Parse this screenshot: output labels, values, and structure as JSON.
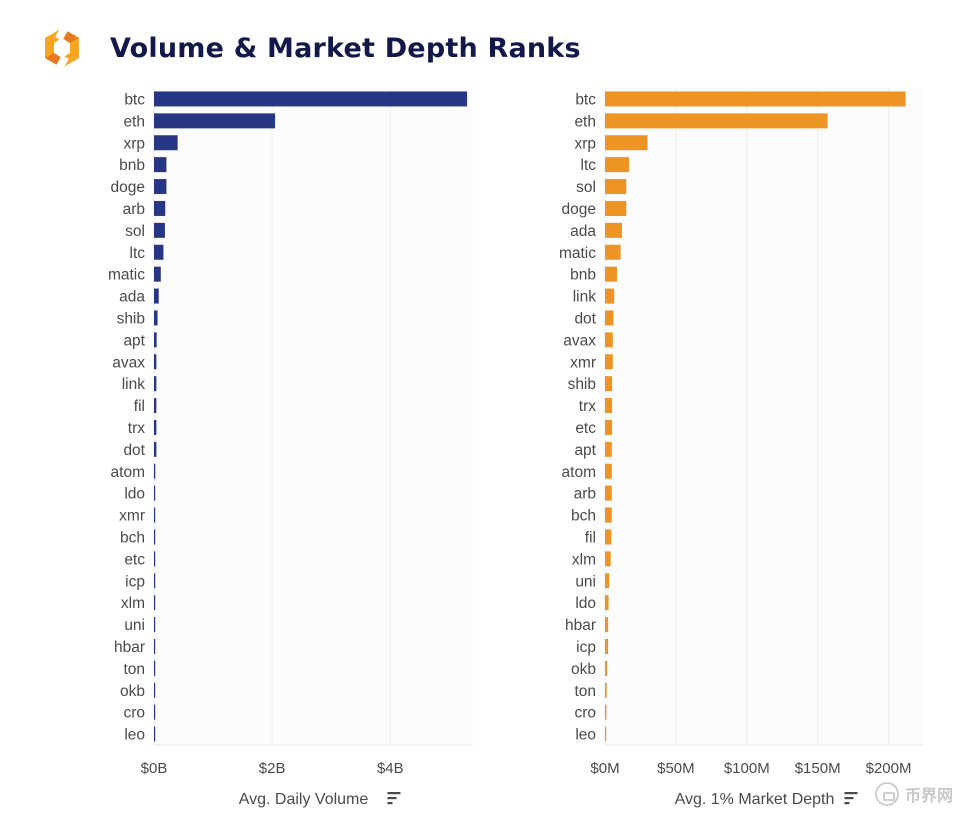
{
  "header": {
    "title": "Volume & Market Depth Ranks",
    "logo_icon": "orange-hexagon-logo-icon"
  },
  "watermark": {
    "text": "币界网",
    "icon": "coin-circle-icon"
  },
  "colors": {
    "volume": "#283785",
    "depth": "#ee9424",
    "grid": "#eeeeee",
    "text": "#4a4a4a"
  },
  "chart_data": [
    {
      "type": "bar",
      "orientation": "horizontal",
      "xlabel": "Avg. Daily Volume",
      "xlim": [
        0,
        5400000000
      ],
      "ticks": [
        0,
        2000000000,
        4000000000
      ],
      "tick_labels": [
        "$0B",
        "$2B",
        "$4B"
      ],
      "grid": true,
      "categories": [
        "btc",
        "eth",
        "xrp",
        "bnb",
        "doge",
        "arb",
        "sol",
        "ltc",
        "matic",
        "ada",
        "shib",
        "apt",
        "avax",
        "link",
        "fil",
        "trx",
        "dot",
        "atom",
        "ldo",
        "xmr",
        "bch",
        "etc",
        "icp",
        "xlm",
        "uni",
        "hbar",
        "ton",
        "okb",
        "cro",
        "leo"
      ],
      "values": [
        5300000000,
        2050000000,
        400000000,
        210000000,
        210000000,
        190000000,
        185000000,
        160000000,
        115000000,
        80000000,
        60000000,
        45000000,
        40000000,
        40000000,
        40000000,
        40000000,
        40000000,
        22000000,
        20000000,
        20000000,
        18000000,
        18000000,
        16000000,
        15000000,
        14000000,
        14000000,
        13000000,
        12000000,
        12000000,
        10000000
      ]
    },
    {
      "type": "bar",
      "orientation": "horizontal",
      "xlabel": "Avg. 1% Market Depth",
      "xlim": [
        0,
        225000000
      ],
      "ticks": [
        0,
        50000000,
        100000000,
        150000000,
        200000000
      ],
      "tick_labels": [
        "$0M",
        "$50M",
        "$100M",
        "$150M",
        "$200M"
      ],
      "grid": true,
      "categories": [
        "btc",
        "eth",
        "xrp",
        "ltc",
        "sol",
        "doge",
        "ada",
        "matic",
        "bnb",
        "link",
        "dot",
        "avax",
        "xmr",
        "shib",
        "trx",
        "etc",
        "apt",
        "atom",
        "arb",
        "bch",
        "fil",
        "xlm",
        "uni",
        "ldo",
        "hbar",
        "icp",
        "okb",
        "ton",
        "cro",
        "leo"
      ],
      "values": [
        212000000,
        157000000,
        30000000,
        17000000,
        15000000,
        15000000,
        12000000,
        11000000,
        8500000,
        6500000,
        6000000,
        5500000,
        5500000,
        5000000,
        5000000,
        5000000,
        4800000,
        4800000,
        4800000,
        4800000,
        4500000,
        4000000,
        3000000,
        2500000,
        2200000,
        2200000,
        1500000,
        1200000,
        1000000,
        800000
      ]
    }
  ]
}
